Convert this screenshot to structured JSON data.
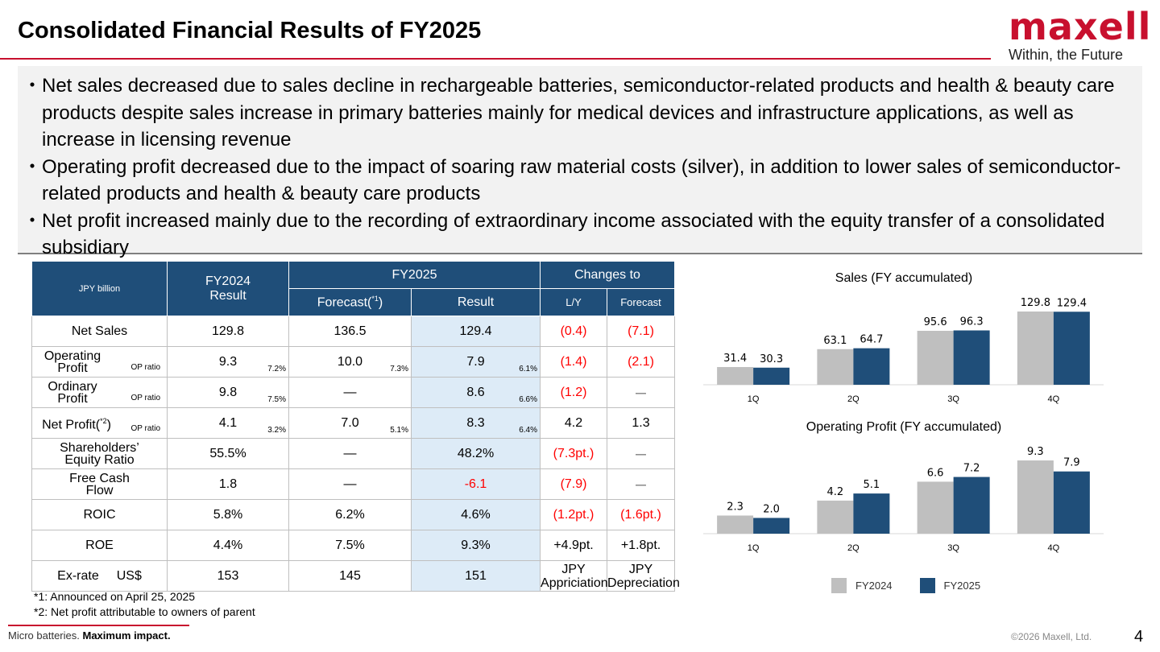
{
  "header": {
    "title": "Consolidated Financial Results of FY2025",
    "logo_word": "maxell",
    "logo_tagline": "Within, the Future"
  },
  "summary": {
    "bullet_mark": "・",
    "items": [
      "Net sales decreased due to sales decline in rechargeable batteries, semiconductor-related products and health & beauty care products despite sales increase in primary batteries mainly for medical devices and infrastructure applications, as well as increase in licensing revenue",
      "Operating profit decreased due to the impact of soaring raw material costs (silver), in addition to lower sales of semiconductor-related products and health & beauty care products",
      "Net profit increased mainly due to the recording of extraordinary income associated with the equity transfer of a consolidated subsidiary"
    ]
  },
  "table": {
    "unit": "JPY billion",
    "fy2024_line1": "FY2024",
    "fy2024_line2": "Result",
    "fy2025": "FY2025",
    "changes_to": "Changes to",
    "forecast_label": "Forecast(",
    "forecast_note": "*1",
    "forecast_close": ")",
    "result": "Result",
    "ly": "L/Y",
    "forecast": "Forecast",
    "op_ratio_label": "OP ratio",
    "rows": {
      "net_sales": {
        "label": "Net Sales",
        "fy2024": "129.8",
        "forecast": "136.5",
        "result": "129.4",
        "ly": "(0.4)",
        "vs_forecast": "(7.1)"
      },
      "operating_profit": {
        "label1": "Operating",
        "label2": "Profit",
        "fy2024": "9.3",
        "fy2024_ratio": "7.2%",
        "forecast": "10.0",
        "forecast_ratio": "7.3%",
        "result": "7.9",
        "result_ratio": "6.1%",
        "ly": "(1.4)",
        "vs_forecast": "(2.1)"
      },
      "ordinary_profit": {
        "label1": "Ordinary",
        "label2": "Profit",
        "fy2024": "9.8",
        "fy2024_ratio": "7.5%",
        "forecast": "—",
        "result": "8.6",
        "result_ratio": "6.6%",
        "ly": "(1.2)",
        "vs_forecast": "ー"
      },
      "net_profit": {
        "label": "Net Profit(",
        "note": "*2",
        "label_close": ")",
        "fy2024": "4.1",
        "fy2024_ratio": "3.2%",
        "forecast": "7.0",
        "forecast_ratio": "5.1%",
        "result": "8.3",
        "result_ratio": "6.4%",
        "ly": "4.2",
        "vs_forecast": "1.3"
      },
      "equity_ratio": {
        "label1": "Shareholders’",
        "label2": "Equity Ratio",
        "fy2024": "55.5%",
        "forecast": "—",
        "result": "48.2%",
        "ly": "(7.3pt.)",
        "vs_forecast": "ー"
      },
      "fcf": {
        "label1": "Free Cash",
        "label2": "Flow",
        "fy2024": "1.8",
        "forecast": "—",
        "result": "-6.1",
        "ly": "(7.9)",
        "vs_forecast": "ー"
      },
      "roic": {
        "label": "ROIC",
        "fy2024": "5.8%",
        "forecast": "6.2%",
        "result": "4.6%",
        "ly": "(1.2pt.)",
        "vs_forecast": "(1.6pt.)"
      },
      "roe": {
        "label": "ROE",
        "fy2024": "4.4%",
        "forecast": "7.5%",
        "result": "9.3%",
        "ly": "+4.9pt.",
        "vs_forecast": "+1.8pt."
      },
      "exrate": {
        "label": "Ex-rate",
        "currency": "US$",
        "fy2024": "153",
        "forecast": "145",
        "result": "151",
        "ly1": "JPY",
        "ly2": "Appriciation",
        "vf1": "JPY",
        "vf2": "Depreciation"
      }
    }
  },
  "notes": [
    "*1: Announced on April 25, 2025",
    "*2: Net profit attributable to owners of parent"
  ],
  "footer": {
    "tagline_normal": "Micro batteries.",
    "tagline_bold": "Maximum impact.",
    "copyright": "©2026 Maxell, Ltd.",
    "page": "4"
  },
  "colors": {
    "fy2024": "#bfbfbf",
    "fy2025": "#1f4e79",
    "accent": "#c8102e",
    "header_fill": "#1f4e79",
    "result_fill": "#ddebf7"
  },
  "chart_data": [
    {
      "type": "bar",
      "title": "Sales (FY accumulated)",
      "categories": [
        "1Q",
        "2Q",
        "3Q",
        "4Q"
      ],
      "series": [
        {
          "name": "FY2024",
          "values": [
            31.4,
            63.1,
            95.6,
            129.8
          ],
          "labels": [
            "31.4",
            "63.1",
            "95.6",
            "129.8"
          ]
        },
        {
          "name": "FY2025",
          "values": [
            30.3,
            64.7,
            96.3,
            129.4
          ],
          "labels": [
            "30.3",
            "64.7",
            "96.3",
            "129.4"
          ]
        }
      ],
      "ylim": [
        0,
        129.8
      ],
      "grid": false,
      "legend": "bottom"
    },
    {
      "type": "bar",
      "title": "Operating Profit (FY accumulated)",
      "categories": [
        "1Q",
        "2Q",
        "3Q",
        "4Q"
      ],
      "series": [
        {
          "name": "FY2024",
          "values": [
            2.3,
            4.2,
            6.6,
            9.3
          ],
          "labels": [
            "2.3",
            "4.2",
            "6.6",
            "9.3"
          ]
        },
        {
          "name": "FY2025",
          "values": [
            2.0,
            5.1,
            7.2,
            7.9
          ],
          "labels": [
            "2.0",
            "5.1",
            "7.2",
            "7.9"
          ]
        }
      ],
      "ylim": [
        0,
        9.3
      ],
      "grid": false,
      "legend": "bottom"
    }
  ]
}
